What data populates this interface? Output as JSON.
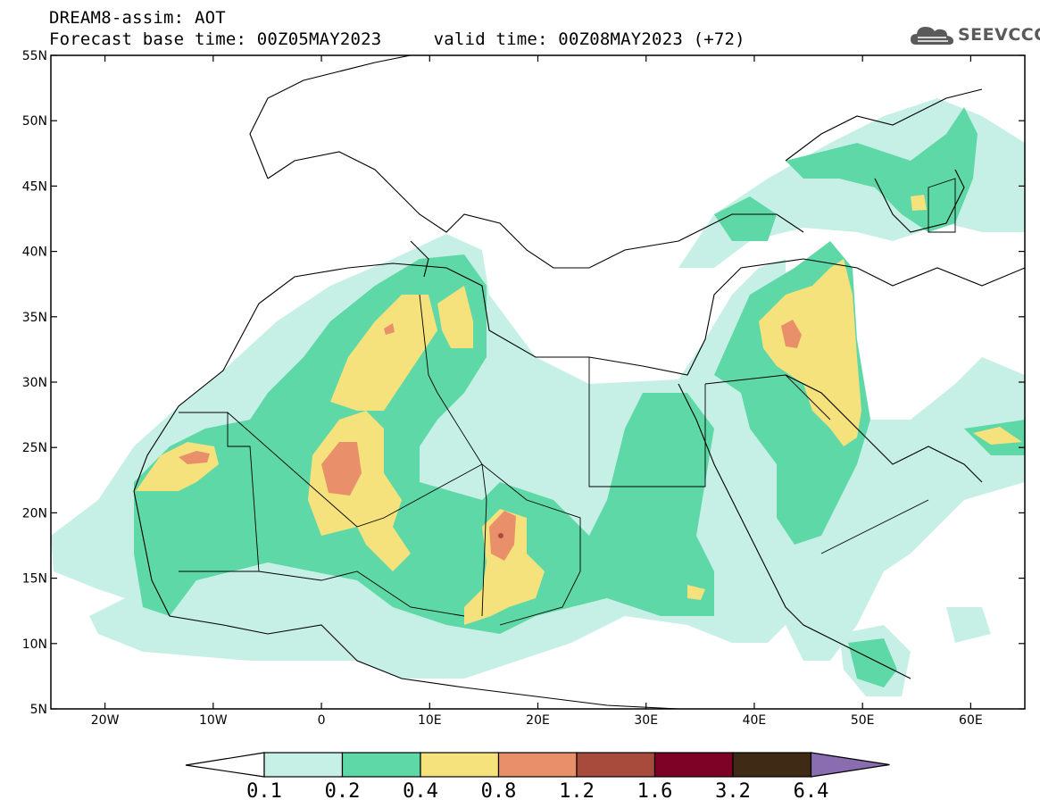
{
  "header": {
    "line1": "DREAM8-assim: AOT",
    "line2": "Forecast base time: 00Z05MAY2023     valid time: 00Z08MAY2023 (+72)",
    "logo_text": "SEEVCCC"
  },
  "map": {
    "lat_labels": [
      "55N",
      "50N",
      "45N",
      "40N",
      "35N",
      "30N",
      "25N",
      "20N",
      "15N",
      "10N",
      "5N"
    ],
    "lon_labels": [
      "20W",
      "10W",
      "0",
      "10E",
      "20E",
      "30E",
      "40E",
      "50E",
      "60E"
    ],
    "lon_range": [
      -25,
      65
    ],
    "lat_range": [
      5,
      55
    ]
  },
  "legend": {
    "levels": [
      "0.1",
      "0.2",
      "0.4",
      "0.8",
      "1.2",
      "1.6",
      "3.2",
      "6.4"
    ],
    "colors": [
      "#c6f0e6",
      "#5fd8a8",
      "#f5e27c",
      "#e9906a",
      "#a94b3c",
      "#7d0226",
      "#3f2a16",
      "#8a6db0"
    ]
  },
  "colors": {
    "light": "#c6f0e6",
    "green": "#5fd8a8",
    "yellow": "#f5e27c",
    "orange": "#e9906a"
  }
}
